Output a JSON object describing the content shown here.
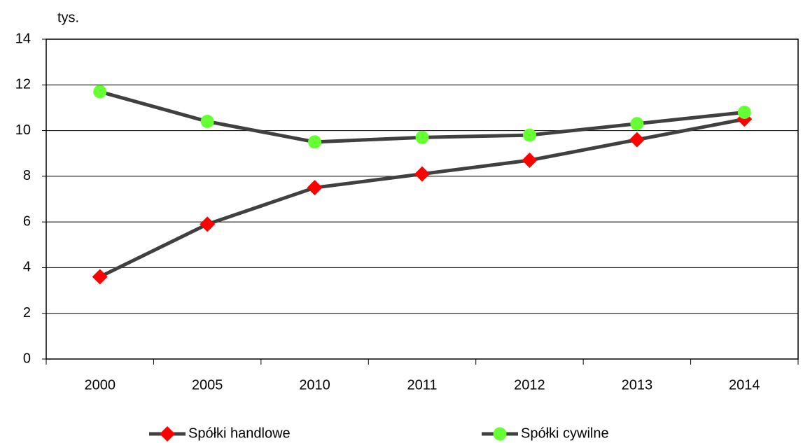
{
  "chart_data": {
    "type": "line",
    "y_label": "tys.",
    "categories": [
      "2000",
      "2005",
      "2010",
      "2011",
      "2012",
      "2013",
      "2014"
    ],
    "series": [
      {
        "name": "Spółki handlowe",
        "color": "#404040",
        "marker": "diamond",
        "marker_color": "#ff0000",
        "values": [
          3.6,
          5.9,
          7.5,
          8.1,
          8.7,
          9.6,
          10.5
        ]
      },
      {
        "name": "Spółki cywilne",
        "color": "#404040",
        "marker": "circle",
        "marker_color": "#66ff33",
        "values": [
          11.7,
          10.4,
          9.5,
          9.7,
          9.8,
          10.3,
          10.8
        ]
      }
    ],
    "ylim": [
      0,
      14
    ],
    "yticks": [
      0,
      2,
      4,
      6,
      8,
      10,
      12,
      14
    ],
    "grid": true,
    "legend": "bottom"
  }
}
